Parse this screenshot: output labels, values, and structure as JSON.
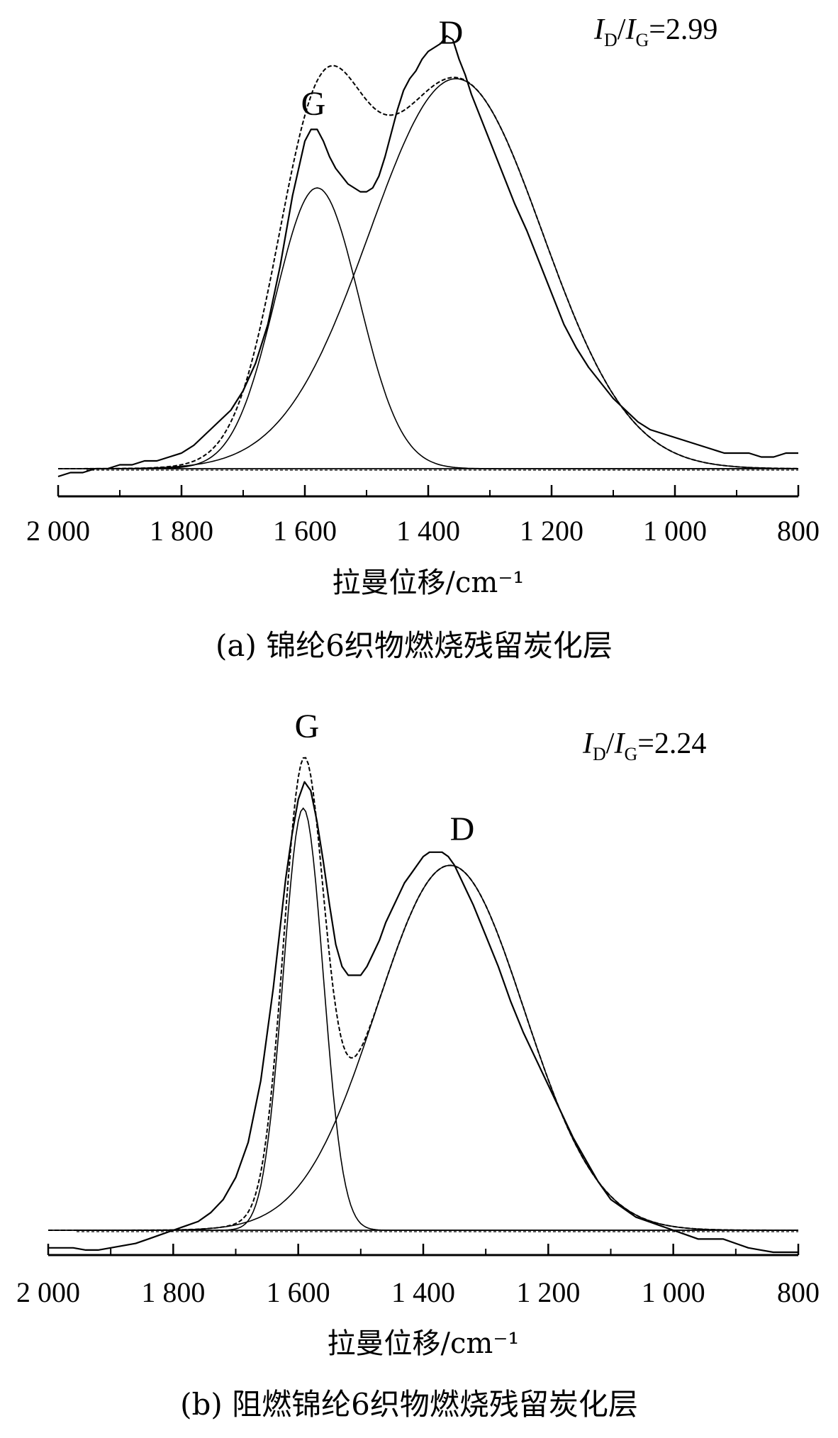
{
  "chart_data": [
    {
      "type": "line",
      "panel": "a",
      "xlabel": "拉曼位移/cm⁻¹",
      "x_axis_reversed": true,
      "xlim": [
        2000,
        800
      ],
      "xticks": [
        "2 000",
        "1 800",
        "1 600",
        "1 400",
        "1 200",
        "1 000",
        "800"
      ],
      "xtick_values": [
        2000,
        1800,
        1600,
        1400,
        1200,
        1000,
        800
      ],
      "grid": false,
      "caption": "(a) 锦纶6织物燃烧残留炭化层",
      "ratio": {
        "num": "I",
        "num_sub": "D",
        "den": "I",
        "den_sub": "G",
        "value": "=2.99"
      },
      "peaks": [
        {
          "label": "G",
          "center": 1580,
          "height": 0.72
        },
        {
          "label": "D",
          "center": 1355,
          "height": 1.0
        }
      ],
      "series": [
        {
          "style": "measured",
          "x": [
            2000,
            1980,
            1960,
            1940,
            1920,
            1900,
            1880,
            1860,
            1840,
            1820,
            1800,
            1780,
            1760,
            1740,
            1720,
            1700,
            1680,
            1660,
            1640,
            1620,
            1600,
            1590,
            1580,
            1570,
            1560,
            1550,
            1540,
            1530,
            1520,
            1510,
            1500,
            1490,
            1480,
            1470,
            1460,
            1450,
            1440,
            1430,
            1420,
            1410,
            1400,
            1390,
            1380,
            1370,
            1360,
            1350,
            1340,
            1330,
            1320,
            1300,
            1280,
            1260,
            1240,
            1220,
            1200,
            1180,
            1160,
            1140,
            1120,
            1100,
            1080,
            1060,
            1040,
            1020,
            1000,
            980,
            960,
            940,
            920,
            900,
            880,
            860,
            840,
            820,
            800
          ],
          "y": [
            -0.02,
            -0.01,
            -0.01,
            0.0,
            0.0,
            0.01,
            0.01,
            0.02,
            0.02,
            0.03,
            0.04,
            0.06,
            0.09,
            0.12,
            0.15,
            0.2,
            0.27,
            0.37,
            0.52,
            0.7,
            0.84,
            0.87,
            0.87,
            0.84,
            0.8,
            0.77,
            0.75,
            0.73,
            0.72,
            0.71,
            0.71,
            0.72,
            0.75,
            0.8,
            0.86,
            0.92,
            0.97,
            1.0,
            1.02,
            1.05,
            1.07,
            1.08,
            1.09,
            1.11,
            1.1,
            1.05,
            1.01,
            0.96,
            0.92,
            0.84,
            0.76,
            0.68,
            0.61,
            0.53,
            0.45,
            0.37,
            0.31,
            0.26,
            0.22,
            0.18,
            0.15,
            0.12,
            0.1,
            0.09,
            0.08,
            0.07,
            0.06,
            0.05,
            0.04,
            0.04,
            0.04,
            0.03,
            0.03,
            0.04,
            0.04
          ]
        },
        {
          "style": "fit-sum",
          "centers": [
            1580,
            1355
          ],
          "amplitudes": [
            0.72,
            1.0
          ],
          "widths": [
            68,
            140
          ]
        },
        {
          "style": "component-G",
          "center": 1580,
          "amplitude": 0.72,
          "width": 68
        },
        {
          "style": "component-D",
          "center": 1355,
          "amplitude": 1.0,
          "width": 140
        },
        {
          "style": "baseline",
          "value": 0
        }
      ]
    },
    {
      "type": "line",
      "panel": "b",
      "xlabel": "拉曼位移/cm⁻¹",
      "x_axis_reversed": true,
      "xlim": [
        2000,
        800
      ],
      "xticks": [
        "2 000",
        "1 800",
        "1 600",
        "1 400",
        "1 200",
        "1 000",
        "800"
      ],
      "xtick_values": [
        2000,
        1800,
        1600,
        1400,
        1200,
        1000,
        800
      ],
      "grid": false,
      "caption": "(b) 阻燃锦纶6织物燃烧残留炭化层",
      "ratio": {
        "num": "I",
        "num_sub": "D",
        "den": "I",
        "den_sub": "G",
        "value": "=2.24"
      },
      "peaks": [
        {
          "label": "G",
          "center": 1590,
          "height": 0.96
        },
        {
          "label": "D",
          "center": 1355,
          "height": 0.83
        }
      ],
      "series": [
        {
          "style": "measured",
          "x": [
            2000,
            1980,
            1960,
            1940,
            1920,
            1900,
            1880,
            1860,
            1840,
            1820,
            1800,
            1780,
            1760,
            1740,
            1720,
            1700,
            1680,
            1660,
            1640,
            1620,
            1610,
            1600,
            1590,
            1580,
            1570,
            1560,
            1550,
            1540,
            1530,
            1520,
            1510,
            1500,
            1490,
            1480,
            1470,
            1460,
            1450,
            1440,
            1430,
            1420,
            1410,
            1400,
            1390,
            1380,
            1370,
            1360,
            1350,
            1340,
            1330,
            1320,
            1300,
            1280,
            1260,
            1240,
            1220,
            1200,
            1180,
            1160,
            1140,
            1120,
            1100,
            1080,
            1060,
            1040,
            1020,
            1000,
            980,
            960,
            940,
            920,
            900,
            880,
            860,
            840,
            820,
            800
          ],
          "y": [
            -0.04,
            -0.04,
            -0.04,
            -0.045,
            -0.045,
            -0.04,
            -0.035,
            -0.03,
            -0.02,
            -0.01,
            0.0,
            0.01,
            0.02,
            0.04,
            0.07,
            0.12,
            0.2,
            0.34,
            0.55,
            0.8,
            0.9,
            0.98,
            1.02,
            1.0,
            0.93,
            0.84,
            0.74,
            0.65,
            0.6,
            0.58,
            0.58,
            0.58,
            0.6,
            0.63,
            0.66,
            0.7,
            0.73,
            0.76,
            0.79,
            0.81,
            0.83,
            0.85,
            0.86,
            0.86,
            0.86,
            0.85,
            0.83,
            0.8,
            0.77,
            0.74,
            0.67,
            0.6,
            0.52,
            0.45,
            0.39,
            0.33,
            0.27,
            0.21,
            0.16,
            0.11,
            0.07,
            0.05,
            0.03,
            0.02,
            0.01,
            0.0,
            -0.01,
            -0.02,
            -0.02,
            -0.02,
            -0.03,
            -0.04,
            -0.045,
            -0.05,
            -0.05,
            -0.05
          ]
        },
        {
          "style": "fit-sum",
          "centers": [
            1592,
            1357
          ],
          "amplitudes": [
            0.96,
            0.83
          ],
          "widths": [
            32,
            118
          ]
        },
        {
          "style": "component-G",
          "center": 1592,
          "amplitude": 0.96,
          "width": 32
        },
        {
          "style": "component-D",
          "center": 1357,
          "amplitude": 0.83,
          "width": 118
        },
        {
          "style": "baseline",
          "value": 0
        }
      ]
    }
  ]
}
